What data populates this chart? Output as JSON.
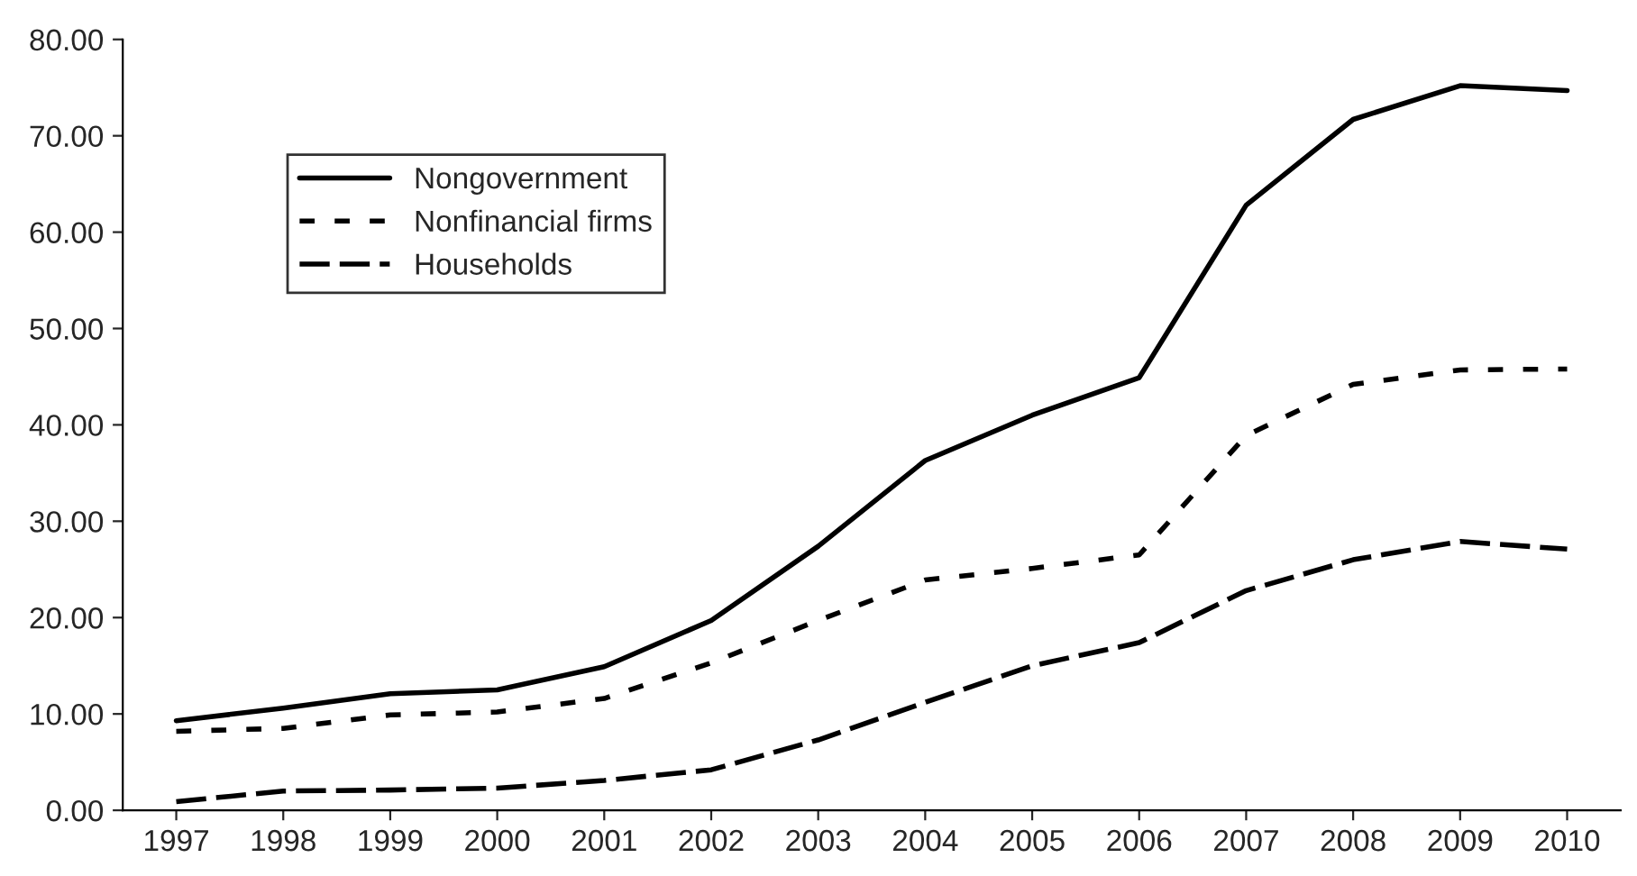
{
  "chart_data": {
    "type": "line",
    "categories": [
      "1997",
      "1998",
      "1999",
      "2000",
      "2001",
      "2002",
      "2003",
      "2004",
      "2005",
      "2006",
      "2007",
      "2008",
      "2009",
      "2010"
    ],
    "series": [
      {
        "name": "Nongovernment",
        "color": "#000000",
        "line_style": "solid",
        "values": [
          9.3,
          10.6,
          12.1,
          12.5,
          14.9,
          19.7,
          27.4,
          36.3,
          41.0,
          44.9,
          62.8,
          71.7,
          75.2,
          74.7
        ]
      },
      {
        "name": "Nonfinancial firms",
        "color": "#000000",
        "line_style": "dotted",
        "values": [
          8.2,
          8.5,
          9.9,
          10.2,
          11.6,
          15.3,
          19.7,
          23.9,
          25.1,
          26.5,
          38.9,
          44.2,
          45.7,
          45.8
        ]
      },
      {
        "name": "Households",
        "color": "#000000",
        "line_style": "dashed",
        "values": [
          0.9,
          2.0,
          2.1,
          2.3,
          3.1,
          4.2,
          7.3,
          11.2,
          15.0,
          17.4,
          22.8,
          26.0,
          27.9,
          27.1
        ]
      }
    ],
    "ylim": [
      0,
      80
    ],
    "yticks": [
      {
        "value": 0,
        "label": "0.00"
      },
      {
        "value": 10,
        "label": "10.00"
      },
      {
        "value": 20,
        "label": "20.00"
      },
      {
        "value": 30,
        "label": "30.00"
      },
      {
        "value": 40,
        "label": "40.00"
      },
      {
        "value": 50,
        "label": "50.00"
      },
      {
        "value": 60,
        "label": "60.00"
      },
      {
        "value": 70,
        "label": "70.00"
      },
      {
        "value": 80,
        "label": "80.00"
      }
    ],
    "grid": false,
    "legend": "top left",
    "marker": "none"
  }
}
